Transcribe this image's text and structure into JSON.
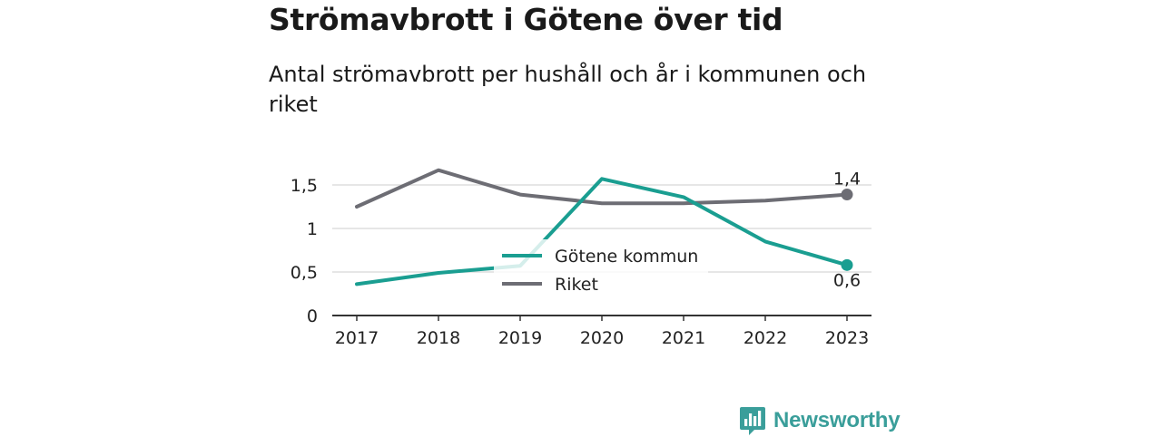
{
  "header": {
    "title": "Strömavbrott i Götene över tid",
    "subtitle": "Antal strömavbrott per hushåll och år i kommunen och riket"
  },
  "brand": {
    "name": "Newsworthy",
    "icon": "newsworthy-logo-icon",
    "color": "#3a9e9a"
  },
  "chart_data": {
    "type": "line",
    "x": [
      2017,
      2018,
      2019,
      2020,
      2021,
      2022,
      2023
    ],
    "x_tick_labels": [
      "2017",
      "2018",
      "2019",
      "2020",
      "2021",
      "2022",
      "2023"
    ],
    "y_ticks": [
      0,
      0.5,
      1,
      1.5
    ],
    "y_tick_labels": [
      "0",
      "0,5",
      "1",
      "1,5"
    ],
    "ylim": [
      0,
      1.7
    ],
    "grid": true,
    "legend_position": "center",
    "series": [
      {
        "name": "Götene kommun",
        "color": "#1a9e91",
        "values": [
          0.36,
          0.49,
          0.57,
          1.57,
          1.36,
          0.85,
          0.58
        ],
        "end_label": "0,6"
      },
      {
        "name": "Riket",
        "color": "#6d6d74",
        "values": [
          1.25,
          1.67,
          1.39,
          1.29,
          1.29,
          1.32,
          1.39
        ],
        "end_label": "1,4"
      }
    ]
  }
}
